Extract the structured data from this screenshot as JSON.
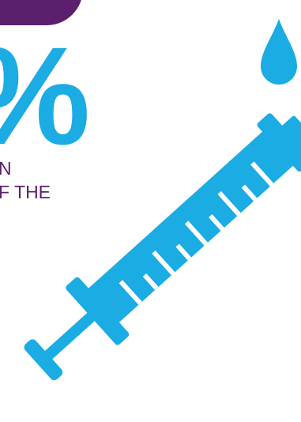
{
  "stat": {
    "percent_label": "%"
  },
  "caption": {
    "line_1": "N",
    "line_2": "F THE"
  },
  "icons": {
    "syringe": "syringe-icon",
    "drop": "water-drop-icon"
  },
  "colors": {
    "accent_blue": "#1aace3",
    "brand_purple": "#5c1f6e",
    "background": "#ffffff"
  }
}
